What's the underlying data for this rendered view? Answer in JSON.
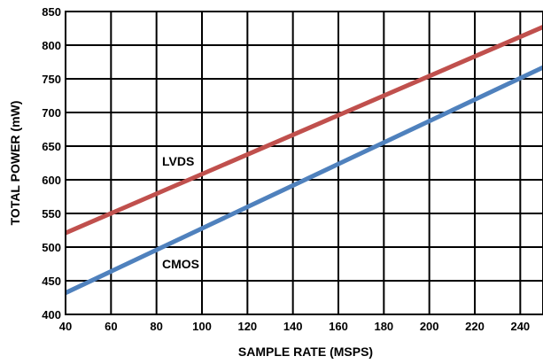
{
  "chart_data": {
    "type": "line",
    "xlabel": "SAMPLE RATE (MSPS)",
    "ylabel": "TOTAL POWER (mW)",
    "xlim": [
      40,
      250
    ],
    "ylim": [
      400,
      850
    ],
    "xticks": [
      40,
      60,
      80,
      100,
      120,
      140,
      160,
      180,
      200,
      220,
      240
    ],
    "yticks": [
      400,
      450,
      500,
      550,
      600,
      650,
      700,
      750,
      800,
      850
    ],
    "grid": true,
    "series": [
      {
        "name": "LVDS",
        "color": "#c0504d",
        "x": [
          40,
          250
        ],
        "y": [
          521,
          827
        ]
      },
      {
        "name": "CMOS",
        "color": "#4f81bd",
        "x": [
          40,
          250
        ],
        "y": [
          432,
          767
        ]
      }
    ]
  }
}
